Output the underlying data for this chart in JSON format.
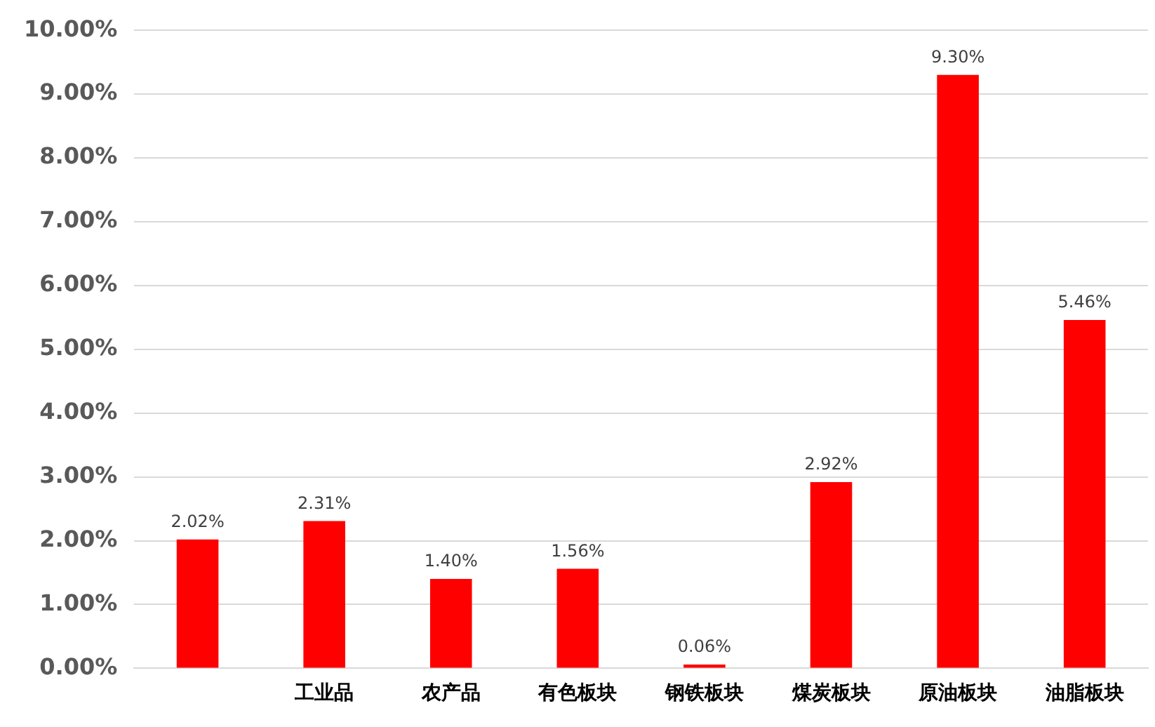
{
  "chart_data": {
    "type": "bar",
    "categories": [
      null,
      "工业品",
      "农产品",
      "有色板块",
      "钢铁板块",
      "煤炭板块",
      "原油板块",
      "油脂板块"
    ],
    "values": [
      2.02,
      2.31,
      1.4,
      1.56,
      0.06,
      2.92,
      9.3,
      5.46
    ],
    "value_labels": [
      "2.02%",
      "2.31%",
      "1.40%",
      "1.56%",
      "0.06%",
      "2.92%",
      "9.30%",
      "5.46%"
    ],
    "color": "#ff0000",
    "ylim": [
      0,
      10
    ],
    "yticks": [
      {
        "value": 0,
        "label": "0.00%"
      },
      {
        "value": 1,
        "label": "1.00%"
      },
      {
        "value": 2,
        "label": "2.00%"
      },
      {
        "value": 3,
        "label": "3.00%"
      },
      {
        "value": 4,
        "label": "4.00%"
      },
      {
        "value": 5,
        "label": "5.00%"
      },
      {
        "value": 6,
        "label": "6.00%"
      },
      {
        "value": 7,
        "label": "7.00%"
      },
      {
        "value": 8,
        "label": "8.00%"
      },
      {
        "value": 9,
        "label": "9.00%"
      },
      {
        "value": 10,
        "label": "10.00%"
      }
    ],
    "grid": "y",
    "legend": false
  }
}
